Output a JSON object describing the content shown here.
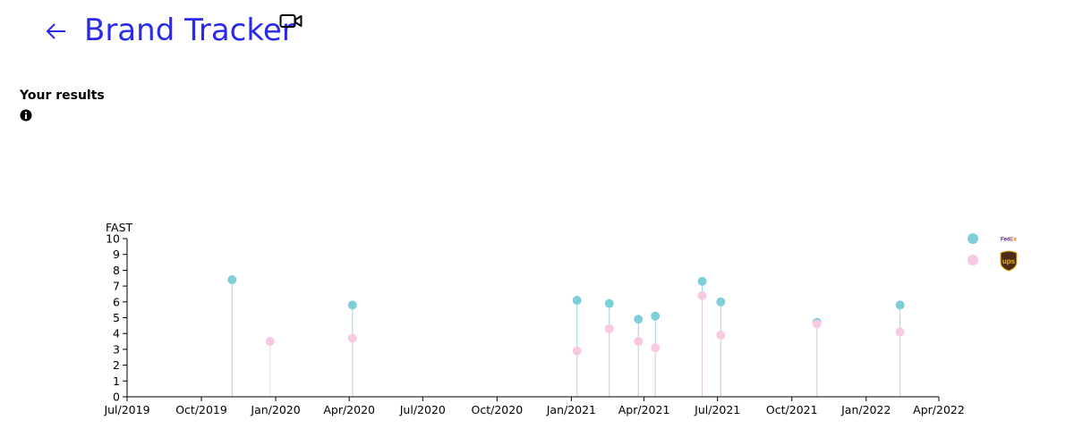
{
  "header": {
    "title": "Brand Tracker",
    "back_icon": "arrow-left-icon",
    "video_icon": "video-camera-icon",
    "accent_color": "#2a2ae8"
  },
  "results": {
    "label": "Your results",
    "info_icon": "info-icon"
  },
  "legend": [
    {
      "name": "FedEx",
      "logo_text": "FedEx",
      "color": "#7ecfd9"
    },
    {
      "name": "UPS",
      "logo_text": "ups",
      "color": "#f9c9e1"
    }
  ],
  "chart_data": {
    "type": "scatter",
    "title": "",
    "ylabel": "FAST",
    "ylim": [
      0,
      10
    ],
    "yticks": [
      "0",
      "1",
      "2",
      "3",
      "4",
      "5",
      "6",
      "7",
      "8",
      "9",
      "10"
    ],
    "xlim": [
      "2019-07-01",
      "2022-04-01"
    ],
    "xticks": [
      {
        "date": "2019-07-01",
        "label": "Jul/2019"
      },
      {
        "date": "2019-10-01",
        "label": "Oct/2019"
      },
      {
        "date": "2020-01-01",
        "label": "Jan/2020"
      },
      {
        "date": "2020-04-01",
        "label": "Apr/2020"
      },
      {
        "date": "2020-07-01",
        "label": "Jul/2020"
      },
      {
        "date": "2020-10-01",
        "label": "Oct/2020"
      },
      {
        "date": "2021-01-01",
        "label": "Jan/2021"
      },
      {
        "date": "2021-04-01",
        "label": "Apr/2021"
      },
      {
        "date": "2021-07-01",
        "label": "Jul/2021"
      },
      {
        "date": "2021-10-01",
        "label": "Oct/2021"
      },
      {
        "date": "2022-01-01",
        "label": "Jan/2022"
      },
      {
        "date": "2022-04-01",
        "label": "Apr/2022"
      }
    ],
    "grid": false,
    "legend_position": "right",
    "series": [
      {
        "name": "FedEx",
        "color": "#7ecfd9",
        "points": [
          {
            "x": "2019-11-08",
            "y": 7.4
          },
          {
            "x": "2020-04-05",
            "y": 5.8
          },
          {
            "x": "2021-01-08",
            "y": 6.1
          },
          {
            "x": "2021-02-17",
            "y": 5.9
          },
          {
            "x": "2021-03-25",
            "y": 4.9
          },
          {
            "x": "2021-04-15",
            "y": 5.1
          },
          {
            "x": "2021-06-12",
            "y": 7.3
          },
          {
            "x": "2021-07-05",
            "y": 6.0
          },
          {
            "x": "2021-11-01",
            "y": 4.7
          },
          {
            "x": "2022-02-12",
            "y": 5.8
          }
        ]
      },
      {
        "name": "UPS",
        "color": "#f9c9e1",
        "points": [
          {
            "x": "2019-12-25",
            "y": 3.5
          },
          {
            "x": "2020-04-05",
            "y": 3.7
          },
          {
            "x": "2021-01-08",
            "y": 2.9
          },
          {
            "x": "2021-02-17",
            "y": 4.3
          },
          {
            "x": "2021-03-25",
            "y": 3.5
          },
          {
            "x": "2021-04-15",
            "y": 3.1
          },
          {
            "x": "2021-06-12",
            "y": 6.4
          },
          {
            "x": "2021-07-05",
            "y": 3.9
          },
          {
            "x": "2021-11-01",
            "y": 4.6
          },
          {
            "x": "2022-02-12",
            "y": 4.1
          }
        ]
      }
    ]
  }
}
